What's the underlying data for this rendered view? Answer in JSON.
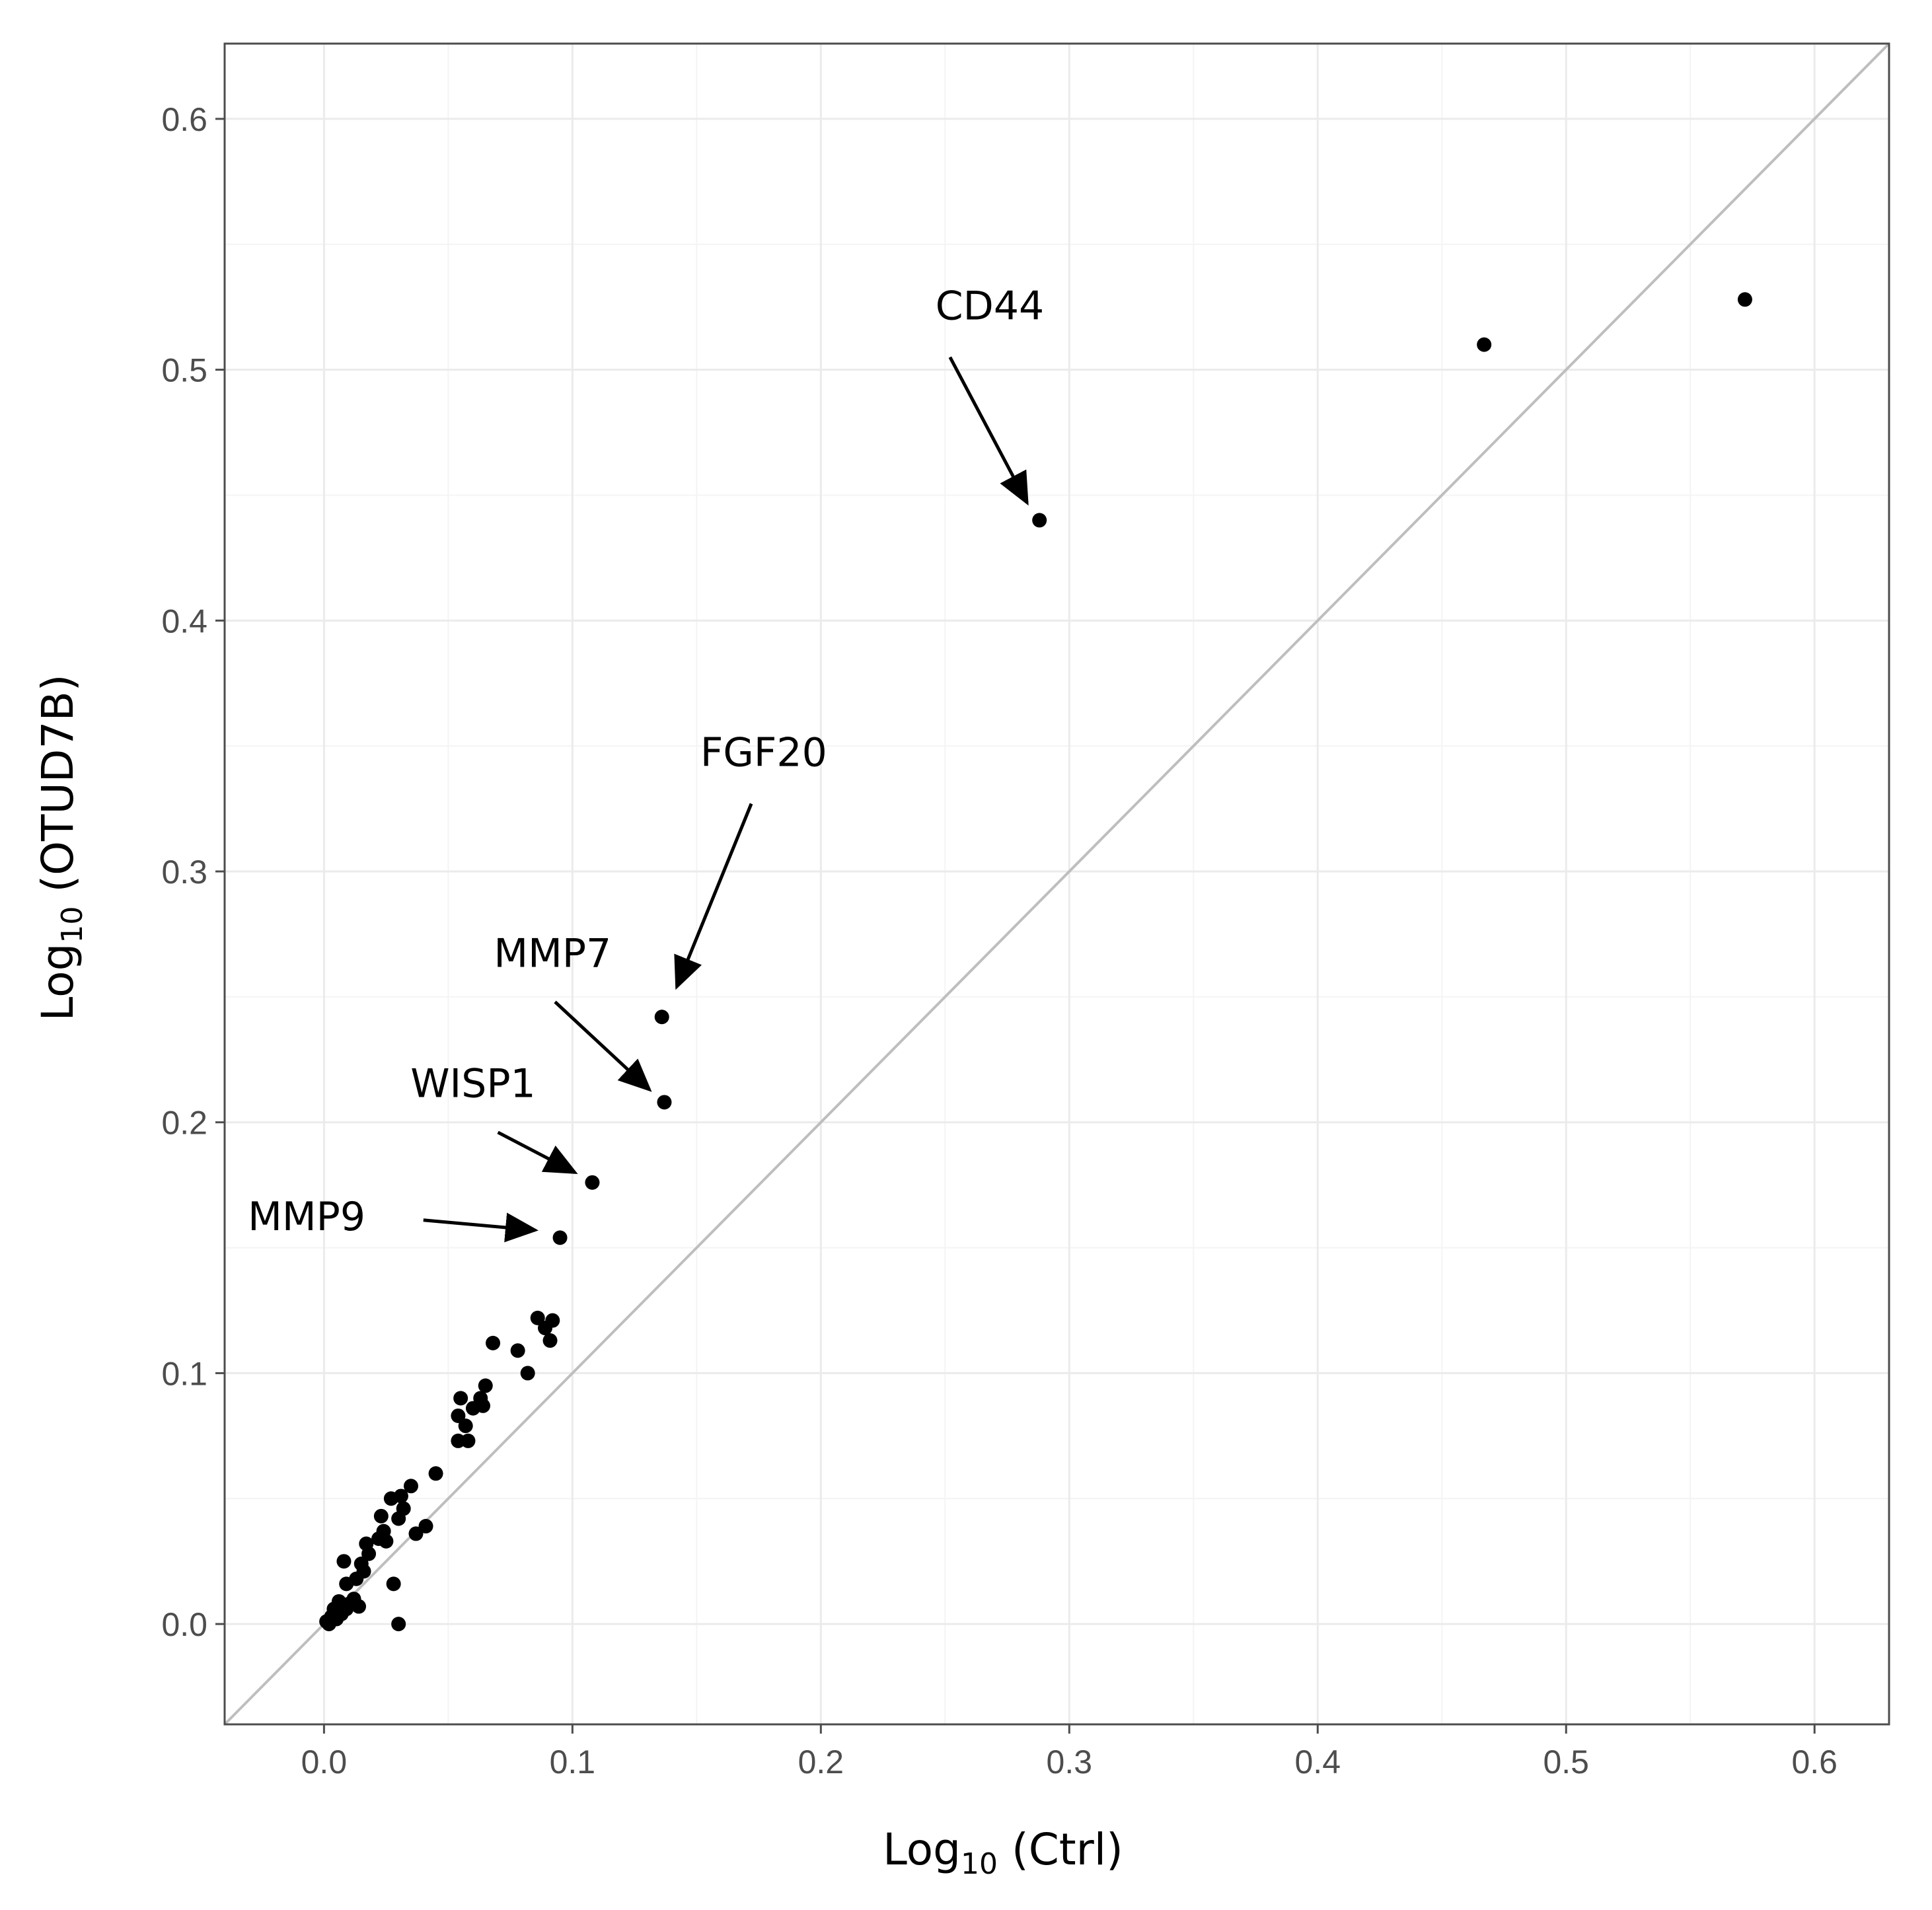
{
  "chart_data": {
    "type": "scatter",
    "title": "",
    "xlabel": {
      "base": "Log",
      "sub": "10",
      "rest": " (Ctrl)"
    },
    "ylabel": {
      "base": "Log",
      "sub": "10",
      "rest": " (OTUD7B)"
    },
    "xlim": [
      -0.04,
      0.63
    ],
    "ylim": [
      -0.04,
      0.63
    ],
    "x_ticks": [
      0.0,
      0.1,
      0.2,
      0.3,
      0.4,
      0.5,
      0.6
    ],
    "y_ticks": [
      0.0,
      0.1,
      0.2,
      0.3,
      0.4,
      0.5,
      0.6
    ],
    "x_tick_labels": [
      "0.0",
      "0.1",
      "0.2",
      "0.3",
      "0.4",
      "0.5",
      "0.6"
    ],
    "y_tick_labels": [
      "0.0",
      "0.1",
      "0.2",
      "0.3",
      "0.4",
      "0.5",
      "0.6"
    ],
    "grid": true,
    "reference_line": "y = x",
    "points": [
      [
        0.572,
        0.528
      ],
      [
        0.467,
        0.51
      ],
      [
        0.288,
        0.44
      ],
      [
        0.136,
        0.242
      ],
      [
        0.137,
        0.208
      ],
      [
        0.108,
        0.176
      ],
      [
        0.095,
        0.154
      ],
      [
        0.086,
        0.122
      ],
      [
        0.092,
        0.121
      ],
      [
        0.089,
        0.118
      ],
      [
        0.091,
        0.113
      ],
      [
        0.068,
        0.112
      ],
      [
        0.078,
        0.109
      ],
      [
        0.082,
        0.1
      ],
      [
        0.065,
        0.095
      ],
      [
        0.055,
        0.09
      ],
      [
        0.063,
        0.09
      ],
      [
        0.054,
        0.083
      ],
      [
        0.06,
        0.086
      ],
      [
        0.064,
        0.087
      ],
      [
        0.057,
        0.079
      ],
      [
        0.054,
        0.073
      ],
      [
        0.058,
        0.073
      ],
      [
        0.045,
        0.06
      ],
      [
        0.035,
        0.055
      ],
      [
        0.031,
        0.051
      ],
      [
        0.027,
        0.05
      ],
      [
        0.032,
        0.046
      ],
      [
        0.023,
        0.043
      ],
      [
        0.03,
        0.042
      ],
      [
        0.041,
        0.039
      ],
      [
        0.037,
        0.036
      ],
      [
        0.024,
        0.037
      ],
      [
        0.025,
        0.033
      ],
      [
        0.022,
        0.034
      ],
      [
        0.017,
        0.032
      ],
      [
        0.018,
        0.028
      ],
      [
        0.015,
        0.024
      ],
      [
        0.008,
        0.025
      ],
      [
        0.016,
        0.021
      ],
      [
        0.013,
        0.018
      ],
      [
        0.009,
        0.016
      ],
      [
        0.028,
        0.016
      ],
      [
        0.012,
        0.01
      ],
      [
        0.01,
        0.008
      ],
      [
        0.006,
        0.009
      ],
      [
        0.014,
        0.007
      ],
      [
        0.009,
        0.006
      ],
      [
        0.004,
        0.006
      ],
      [
        0.007,
        0.004
      ],
      [
        0.003,
        0.003
      ],
      [
        0.005,
        0.002
      ],
      [
        0.001,
        0.001
      ],
      [
        0.002,
        0.0
      ],
      [
        0.03,
        0.0
      ]
    ],
    "annotations": [
      {
        "label": "CD44",
        "text_at": [
          0.268,
          0.52
        ],
        "arrow_from": [
          0.252,
          0.505
        ],
        "arrow_to": [
          0.283,
          0.447
        ]
      },
      {
        "label": "FGF20",
        "text_at": [
          0.177,
          0.342
        ],
        "arrow_from": [
          0.172,
          0.327
        ],
        "arrow_to": [
          0.142,
          0.254
        ]
      },
      {
        "label": "MMP7",
        "text_at": [
          0.092,
          0.262
        ],
        "arrow_from": [
          0.093,
          0.248
        ],
        "arrow_to": [
          0.131,
          0.213
        ]
      },
      {
        "label": "WISP1",
        "text_at": [
          0.06,
          0.21
        ],
        "arrow_from": [
          0.07,
          0.196
        ],
        "arrow_to": [
          0.101,
          0.18
        ]
      },
      {
        "label": "MMP9",
        "text_at": [
          -0.007,
          0.157
        ],
        "arrow_from": [
          0.04,
          0.161
        ],
        "arrow_to": [
          0.085,
          0.157
        ]
      }
    ]
  }
}
